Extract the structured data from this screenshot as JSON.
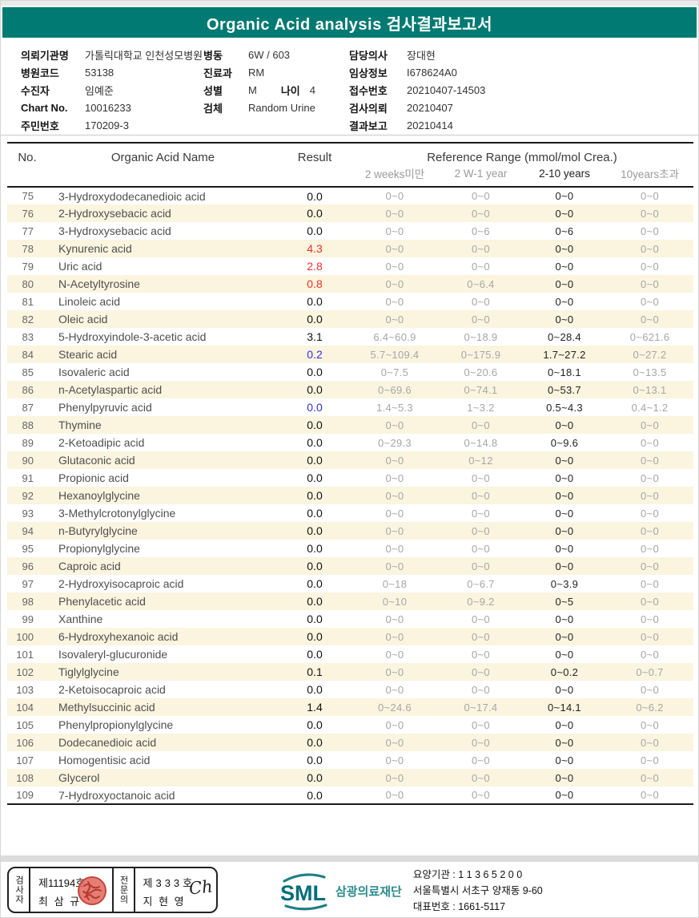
{
  "header": {
    "title": "Organic Acid analysis 검사결과보고서"
  },
  "info": {
    "left": [
      {
        "label": "의뢰기관명",
        "value": "가톨릭대학교 인천성모병원"
      },
      {
        "label": "병원코드",
        "value": "53138"
      },
      {
        "label": "수진자",
        "value": "임예준"
      },
      {
        "label": "Chart No.",
        "value": "10016233"
      },
      {
        "label": "주민번호",
        "value": "170209-3"
      }
    ],
    "middle": [
      {
        "label": "병동",
        "value": "6W / 603"
      },
      {
        "label": "진료과",
        "value": "RM"
      },
      {
        "label": "성별",
        "value": "M",
        "label2": "나이",
        "value2": "4"
      },
      {
        "label": "검체",
        "value": "Random Urine"
      }
    ],
    "right": [
      {
        "label": "담당의사",
        "value": "장대현"
      },
      {
        "label": "임상정보",
        "value": "I678624A0"
      },
      {
        "label": "접수번호",
        "value": "20210407-14503"
      },
      {
        "label": "검사의뢰",
        "value": "20210407"
      },
      {
        "label": "결과보고",
        "value": "20210414"
      }
    ]
  },
  "table": {
    "headers": {
      "no": "No.",
      "name": "Organic Acid Name",
      "result": "Result",
      "reference": "Reference Range (mmol/mol Crea.)",
      "sub": [
        "2 weeks미만",
        "2 W-1 year",
        "2-10 years",
        "10years초과"
      ]
    },
    "rows": [
      {
        "no": "75",
        "name": "3-Hydroxydodecanedioic acid",
        "result": "0.0",
        "result_color": "black",
        "refs": [
          "0~0",
          "0~0",
          "0~0",
          "0~0"
        ]
      },
      {
        "no": "76",
        "name": "2-Hydroxysebacic acid",
        "result": "0.0",
        "result_color": "black",
        "refs": [
          "0~0",
          "0~0",
          "0~0",
          "0~0"
        ]
      },
      {
        "no": "77",
        "name": "3-Hydroxysebacic acid",
        "result": "0.0",
        "result_color": "black",
        "refs": [
          "0~0",
          "0~6",
          "0~6",
          "0~0"
        ]
      },
      {
        "no": "78",
        "name": "Kynurenic acid",
        "result": "4.3",
        "result_color": "red",
        "refs": [
          "0~0",
          "0~0",
          "0~0",
          "0~0"
        ]
      },
      {
        "no": "79",
        "name": "Uric acid",
        "result": "2.8",
        "result_color": "red",
        "refs": [
          "0~0",
          "0~0",
          "0~0",
          "0~0"
        ]
      },
      {
        "no": "80",
        "name": "N-Acetyltyrosine",
        "result": "0.8",
        "result_color": "red",
        "refs": [
          "0~0",
          "0~6.4",
          "0~0",
          "0~0"
        ]
      },
      {
        "no": "81",
        "name": "Linoleic acid",
        "result": "0.0",
        "result_color": "black",
        "refs": [
          "0~0",
          "0~0",
          "0~0",
          "0~0"
        ]
      },
      {
        "no": "82",
        "name": "Oleic acid",
        "result": "0.0",
        "result_color": "black",
        "refs": [
          "0~0",
          "0~0",
          "0~0",
          "0~0"
        ]
      },
      {
        "no": "83",
        "name": "5-Hydroxyindole-3-acetic acid",
        "result": "3.1",
        "result_color": "black",
        "refs": [
          "6.4~60.9",
          "0~18.9",
          "0~28.4",
          "0~621.6"
        ]
      },
      {
        "no": "84",
        "name": "Stearic acid",
        "result": "0.2",
        "result_color": "blue",
        "refs": [
          "5.7~109.4",
          "0~175.9",
          "1.7~27.2",
          "0~27.2"
        ]
      },
      {
        "no": "85",
        "name": "Isovaleric acid",
        "result": "0.0",
        "result_color": "black",
        "refs": [
          "0~7.5",
          "0~20.6",
          "0~18.1",
          "0~13.5"
        ]
      },
      {
        "no": "86",
        "name": "n-Acetylaspartic acid",
        "result": "0.0",
        "result_color": "black",
        "refs": [
          "0~69.6",
          "0~74.1",
          "0~53.7",
          "0~13.1"
        ]
      },
      {
        "no": "87",
        "name": "Phenylpyruvic acid",
        "result": "0.0",
        "result_color": "blue",
        "refs": [
          "1.4~5.3",
          "1~3.2",
          "0.5~4.3",
          "0.4~1.2"
        ]
      },
      {
        "no": "88",
        "name": "Thymine",
        "result": "0.0",
        "result_color": "black",
        "refs": [
          "0~0",
          "0~0",
          "0~0",
          "0~0"
        ]
      },
      {
        "no": "89",
        "name": "2-Ketoadipic acid",
        "result": "0.0",
        "result_color": "black",
        "refs": [
          "0~29.3",
          "0~14.8",
          "0~9.6",
          "0~0"
        ]
      },
      {
        "no": "90",
        "name": "Glutaconic acid",
        "result": "0.0",
        "result_color": "black",
        "refs": [
          "0~0",
          "0~12",
          "0~0",
          "0~0"
        ]
      },
      {
        "no": "91",
        "name": "Propionic acid",
        "result": "0.0",
        "result_color": "black",
        "refs": [
          "0~0",
          "0~0",
          "0~0",
          "0~0"
        ]
      },
      {
        "no": "92",
        "name": "Hexanoylglycine",
        "result": "0.0",
        "result_color": "black",
        "refs": [
          "0~0",
          "0~0",
          "0~0",
          "0~0"
        ]
      },
      {
        "no": "93",
        "name": "3-Methylcrotonylglycine",
        "result": "0.0",
        "result_color": "black",
        "refs": [
          "0~0",
          "0~0",
          "0~0",
          "0~0"
        ]
      },
      {
        "no": "94",
        "name": "n-Butyrylglycine",
        "result": "0.0",
        "result_color": "black",
        "refs": [
          "0~0",
          "0~0",
          "0~0",
          "0~0"
        ]
      },
      {
        "no": "95",
        "name": "Propionylglycine",
        "result": "0.0",
        "result_color": "black",
        "refs": [
          "0~0",
          "0~0",
          "0~0",
          "0~0"
        ]
      },
      {
        "no": "96",
        "name": "Caproic acid",
        "result": "0.0",
        "result_color": "black",
        "refs": [
          "0~0",
          "0~0",
          "0~0",
          "0~0"
        ]
      },
      {
        "no": "97",
        "name": "2-Hydroxyisocaproic acid",
        "result": "0.0",
        "result_color": "black",
        "refs": [
          "0~18",
          "0~6.7",
          "0~3.9",
          "0~0"
        ]
      },
      {
        "no": "98",
        "name": "Phenylacetic acid",
        "result": "0.0",
        "result_color": "black",
        "refs": [
          "0~10",
          "0~9.2",
          "0~5",
          "0~0"
        ]
      },
      {
        "no": "99",
        "name": "Xanthine",
        "result": "0.0",
        "result_color": "black",
        "refs": [
          "0~0",
          "0~0",
          "0~0",
          "0~0"
        ]
      },
      {
        "no": "100",
        "name": "6-Hydroxyhexanoic acid",
        "result": "0.0",
        "result_color": "black",
        "refs": [
          "0~0",
          "0~0",
          "0~0",
          "0~0"
        ]
      },
      {
        "no": "101",
        "name": "Isovaleryl-glucuronide",
        "result": "0.0",
        "result_color": "black",
        "refs": [
          "0~0",
          "0~0",
          "0~0",
          "0~0"
        ]
      },
      {
        "no": "102",
        "name": "Tiglylglycine",
        "result": "0.1",
        "result_color": "black",
        "refs": [
          "0~0",
          "0~0",
          "0~0.2",
          "0~0.7"
        ]
      },
      {
        "no": "103",
        "name": "2-Ketoisocaproic acid",
        "result": "0.0",
        "result_color": "black",
        "refs": [
          "0~0",
          "0~0",
          "0~0",
          "0~0"
        ]
      },
      {
        "no": "104",
        "name": "Methylsuccinic acid",
        "result": "1.4",
        "result_color": "black",
        "refs": [
          "0~24.6",
          "0~17.4",
          "0~14.1",
          "0~6.2"
        ]
      },
      {
        "no": "105",
        "name": "Phenylpropionylglycine",
        "result": "0.0",
        "result_color": "black",
        "refs": [
          "0~0",
          "0~0",
          "0~0",
          "0~0"
        ]
      },
      {
        "no": "106",
        "name": "Dodecanedioic acid",
        "result": "0.0",
        "result_color": "black",
        "refs": [
          "0~0",
          "0~0",
          "0~0",
          "0~0"
        ]
      },
      {
        "no": "107",
        "name": "Homogentisic acid",
        "result": "0.0",
        "result_color": "black",
        "refs": [
          "0~0",
          "0~0",
          "0~0",
          "0~0"
        ]
      },
      {
        "no": "108",
        "name": "Glycerol",
        "result": "0.0",
        "result_color": "black",
        "refs": [
          "0~0",
          "0~0",
          "0~0",
          "0~0"
        ]
      },
      {
        "no": "109",
        "name": "7-Hydroxyoctanoic acid",
        "result": "0.0",
        "result_color": "black",
        "refs": [
          "0~0",
          "0~0",
          "0~0",
          "0~0"
        ]
      }
    ]
  },
  "footer": {
    "examiner": {
      "role": "검사자",
      "cert_no": "제11194호",
      "name": "최 삼 규"
    },
    "specialist": {
      "role": "전문의",
      "cert_no": "제333호",
      "name": "지 현 영",
      "signature": "Ch"
    },
    "organization": {
      "logo_text": "SML",
      "org_name": "삼광의료재단",
      "line1": "요양기관 : 1 1 3 6 5 2 0 0",
      "line2": "서울특별시 서초구 양재동 9-60",
      "line3": "대표번호 : 1661-5117"
    }
  },
  "colors": {
    "banner_teal": "#007a72",
    "abnormal_high_red": "#e8332a",
    "abnormal_low_blue": "#2e2ee0",
    "stripe_cream": "#fbf4df",
    "reference_gray": "#a6a6a6",
    "seal_red": "#cf4a41",
    "logo_teal": "#1f7f83"
  }
}
